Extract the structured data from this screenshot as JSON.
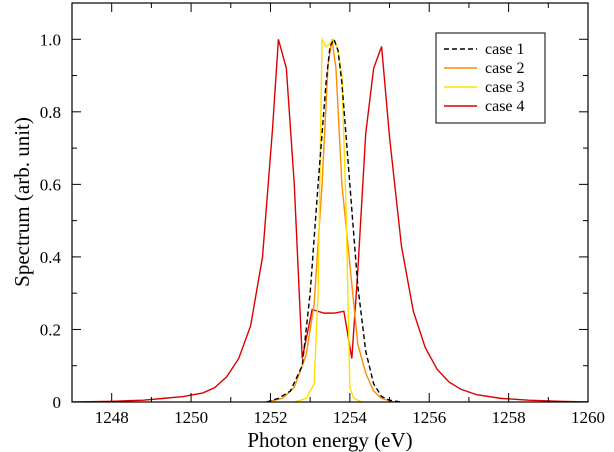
{
  "chart_data": {
    "type": "line",
    "title": "",
    "xlabel": "Photon energy (eV)",
    "ylabel": "Spectrum (arb. unit)",
    "xlim": [
      1247,
      1260
    ],
    "ylim": [
      0,
      1.1
    ],
    "xticks": [
      1248,
      1250,
      1252,
      1254,
      1256,
      1258,
      1260
    ],
    "xtick_labels": [
      "1248",
      "1250",
      "1252",
      "1254",
      "1256",
      "1258",
      "1260"
    ],
    "yticks": [
      0,
      0.2,
      0.4,
      0.6,
      0.8,
      1.0
    ],
    "ytick_labels": [
      "0",
      "0.2",
      "0.4",
      "0.6",
      "0.8",
      "1.0"
    ],
    "grid": false,
    "legend_position": "top-right",
    "series": [
      {
        "name": "case 1",
        "color": "#000000",
        "dash": "dashed",
        "x": [
          1251.9,
          1252.2,
          1252.5,
          1252.8,
          1253.0,
          1253.2,
          1253.4,
          1253.5,
          1253.6,
          1253.7,
          1253.8,
          1254.0,
          1254.2,
          1254.4,
          1254.6,
          1254.8,
          1255.0,
          1255.3
        ],
        "y": [
          0.0,
          0.01,
          0.03,
          0.1,
          0.3,
          0.6,
          0.88,
          0.98,
          1.0,
          0.97,
          0.88,
          0.6,
          0.32,
          0.14,
          0.05,
          0.015,
          0.005,
          0.0
        ]
      },
      {
        "name": "case 2",
        "color": "#ff8c00",
        "dash": "solid",
        "x": [
          1251.9,
          1252.3,
          1252.6,
          1252.9,
          1253.1,
          1253.3,
          1253.45,
          1253.55,
          1253.65,
          1253.8,
          1254.0,
          1254.2,
          1254.4,
          1254.6,
          1254.8,
          1255.1
        ],
        "y": [
          0.0,
          0.01,
          0.04,
          0.13,
          0.27,
          0.6,
          0.93,
          1.0,
          0.92,
          0.6,
          0.38,
          0.16,
          0.08,
          0.03,
          0.01,
          0.0
        ]
      },
      {
        "name": "case 3",
        "color": "#ffe000",
        "dash": "solid",
        "x": [
          1252.6,
          1252.9,
          1253.1,
          1253.2,
          1253.3,
          1253.4,
          1253.5,
          1253.6,
          1253.7,
          1253.8,
          1253.9,
          1254.0,
          1254.1,
          1254.3
        ],
        "y": [
          0.0,
          0.01,
          0.05,
          0.3,
          1.0,
          0.98,
          0.99,
          1.0,
          0.97,
          0.9,
          0.55,
          0.04,
          0.01,
          0.0
        ]
      },
      {
        "name": "case 4",
        "color": "#dd0000",
        "dash": "solid",
        "x": [
          1247.0,
          1248.0,
          1248.8,
          1249.3,
          1249.8,
          1250.3,
          1250.6,
          1250.9,
          1251.2,
          1251.5,
          1251.8,
          1252.05,
          1252.2,
          1252.4,
          1252.6,
          1252.8,
          1253.05,
          1253.35,
          1253.6,
          1253.85,
          1254.05,
          1254.2,
          1254.4,
          1254.6,
          1254.8,
          1255.0,
          1255.3,
          1255.6,
          1255.9,
          1256.2,
          1256.5,
          1256.8,
          1257.2,
          1257.8,
          1258.5,
          1259.3,
          1260.0
        ],
        "y": [
          0.0,
          0.002,
          0.005,
          0.01,
          0.015,
          0.025,
          0.04,
          0.07,
          0.12,
          0.21,
          0.4,
          0.75,
          1.0,
          0.92,
          0.6,
          0.12,
          0.255,
          0.245,
          0.245,
          0.25,
          0.12,
          0.36,
          0.74,
          0.92,
          0.98,
          0.73,
          0.43,
          0.25,
          0.15,
          0.09,
          0.055,
          0.035,
          0.02,
          0.01,
          0.005,
          0.002,
          0.0
        ]
      }
    ]
  }
}
